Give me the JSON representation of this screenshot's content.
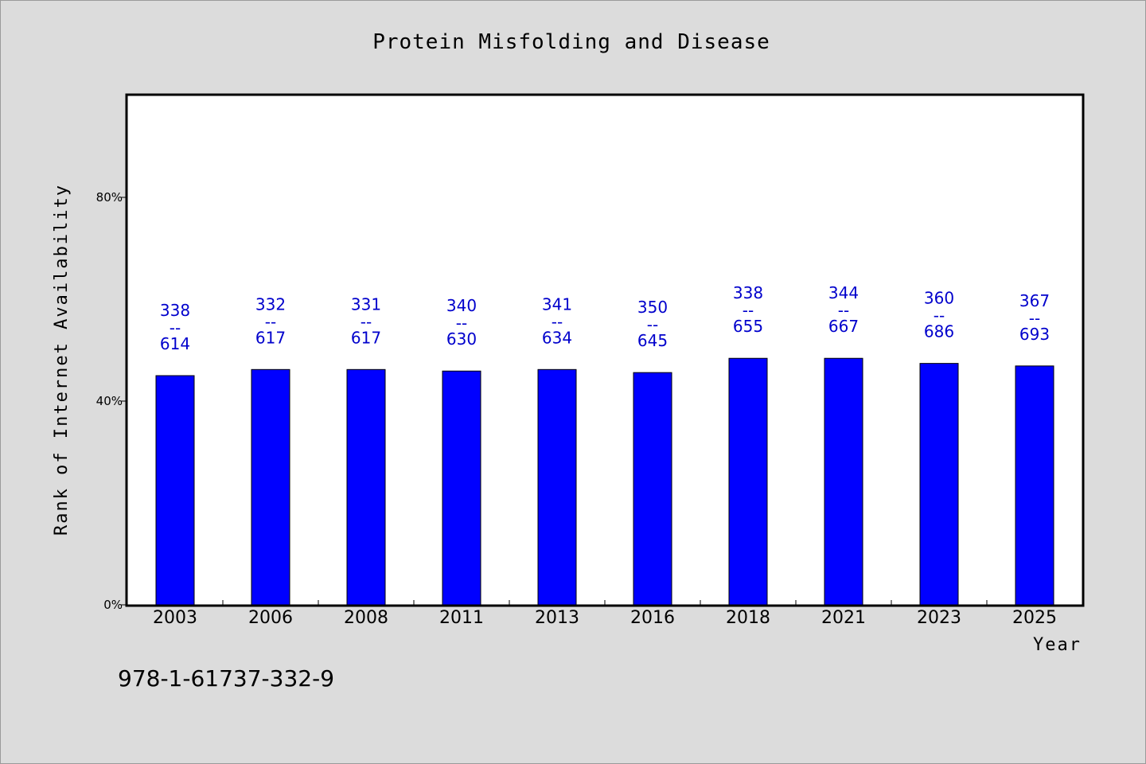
{
  "chart_data": {
    "type": "bar",
    "title": "Protein Misfolding and Disease",
    "xlabel": "Year",
    "ylabel": "Rank of Internet Availability",
    "ylim": [
      0,
      100
    ],
    "yticks": [
      {
        "value": 0,
        "label": "0%"
      },
      {
        "value": 40,
        "label": "40%"
      },
      {
        "value": 80,
        "label": "80%"
      }
    ],
    "grid": false,
    "bar_color": "#0000ff",
    "label_color": "#0000cc",
    "categories": [
      "2003",
      "2006",
      "2008",
      "2011",
      "2013",
      "2016",
      "2018",
      "2021",
      "2023",
      "2025"
    ],
    "values": [
      45.0,
      46.2,
      46.2,
      45.9,
      46.2,
      45.6,
      48.4,
      48.4,
      47.4,
      46.9
    ],
    "labels_top": [
      "338",
      "332",
      "331",
      "340",
      "341",
      "350",
      "338",
      "344",
      "360",
      "367"
    ],
    "labels_sep": [
      "--",
      "--",
      "--",
      "--",
      "--",
      "--",
      "--",
      "--",
      "--",
      "--"
    ],
    "labels_bottom": [
      "614",
      "617",
      "617",
      "630",
      "634",
      "645",
      "655",
      "667",
      "686",
      "693"
    ]
  },
  "footer": {
    "isbn": "978-1-61737-332-9"
  }
}
